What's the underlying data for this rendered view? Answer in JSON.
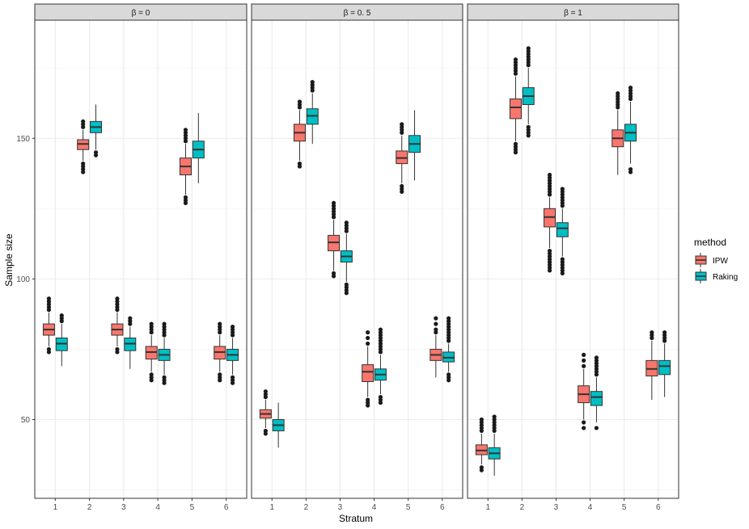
{
  "chart_data": {
    "type": "boxplot",
    "xlabel": "Stratum",
    "ylabel": "Sample size",
    "ylim": [
      22,
      192
    ],
    "y_ticks": [
      50,
      100,
      150
    ],
    "x_categories": [
      "1",
      "2",
      "3",
      "4",
      "5",
      "6"
    ],
    "legend": {
      "title": "method",
      "position": "right",
      "entries": [
        {
          "name": "IPW",
          "color": "#F8766D"
        },
        {
          "name": "Raking",
          "color": "#00BFC4"
        }
      ]
    },
    "panels": [
      {
        "label": "β = 0",
        "series": [
          {
            "name": "IPW",
            "boxes": [
              {
                "stratum": "1",
                "whisker_low": 76,
                "q1": 80,
                "median": 82,
                "q3": 84,
                "whisker_high": 88,
                "outliers": [
                  74,
                  75,
                  89,
                  90,
                  91,
                  92,
                  93
                ]
              },
              {
                "stratum": "2",
                "whisker_low": 142,
                "q1": 146,
                "median": 148,
                "q3": 149.5,
                "whisker_high": 153,
                "outliers": [
                  138,
                  139,
                  140,
                  141,
                  154,
                  155,
                  156
                ]
              },
              {
                "stratum": "3",
                "whisker_low": 76,
                "q1": 80,
                "median": 82,
                "q3": 84,
                "whisker_high": 88,
                "outliers": [
                  74,
                  75,
                  89,
                  90,
                  91,
                  92,
                  93
                ]
              },
              {
                "stratum": "4",
                "whisker_low": 67,
                "q1": 71.5,
                "median": 74,
                "q3": 76,
                "whisker_high": 80,
                "outliers": [
                  64,
                  65,
                  66,
                  81,
                  82,
                  83,
                  84
                ]
              },
              {
                "stratum": "5",
                "whisker_low": 130,
                "q1": 137,
                "median": 140,
                "q3": 143,
                "whisker_high": 148,
                "outliers": [
                  127,
                  128,
                  129,
                  149,
                  150,
                  151,
                  152,
                  153
                ]
              },
              {
                "stratum": "6",
                "whisker_low": 67,
                "q1": 71.5,
                "median": 74,
                "q3": 76,
                "whisker_high": 80,
                "outliers": [
                  64,
                  65,
                  66,
                  81,
                  82,
                  83,
                  84
                ]
              }
            ]
          },
          {
            "name": "Raking",
            "boxes": [
              {
                "stratum": "1",
                "whisker_low": 69,
                "q1": 74.5,
                "median": 77,
                "q3": 79,
                "whisker_high": 84,
                "outliers": [
                  85,
                  86,
                  87
                ]
              },
              {
                "stratum": "2",
                "whisker_low": 146,
                "q1": 152,
                "median": 154,
                "q3": 156,
                "whisker_high": 162,
                "outliers": [
                  144,
                  145
                ]
              },
              {
                "stratum": "3",
                "whisker_low": 68,
                "q1": 74.5,
                "median": 77,
                "q3": 79,
                "whisker_high": 83,
                "outliers": [
                  84,
                  85,
                  86
                ]
              },
              {
                "stratum": "4",
                "whisker_low": 66,
                "q1": 71,
                "median": 73,
                "q3": 75,
                "whisker_high": 79,
                "outliers": [
                  63,
                  64,
                  65,
                  80,
                  81,
                  82,
                  83,
                  84
                ]
              },
              {
                "stratum": "5",
                "whisker_low": 134,
                "q1": 143,
                "median": 146,
                "q3": 149,
                "whisker_high": 159,
                "outliers": []
              },
              {
                "stratum": "6",
                "whisker_low": 66,
                "q1": 71,
                "median": 73,
                "q3": 75,
                "whisker_high": 79,
                "outliers": [
                  63,
                  64,
                  65,
                  80,
                  81,
                  82,
                  83
                ]
              }
            ]
          }
        ]
      },
      {
        "label": "β = 0. 5",
        "series": [
          {
            "name": "IPW",
            "boxes": [
              {
                "stratum": "1",
                "whisker_low": 47,
                "q1": 50.5,
                "median": 52,
                "q3": 53.5,
                "whisker_high": 57,
                "outliers": [
                  45,
                  46,
                  58,
                  59,
                  60
                ]
              },
              {
                "stratum": "2",
                "whisker_low": 142,
                "q1": 149,
                "median": 152,
                "q3": 155,
                "whisker_high": 160,
                "outliers": [
                  140,
                  141,
                  161,
                  162,
                  163
                ]
              },
              {
                "stratum": "3",
                "whisker_low": 103,
                "q1": 110,
                "median": 113,
                "q3": 115.5,
                "whisker_high": 121,
                "outliers": [
                  101,
                  102,
                  122,
                  123,
                  124,
                  125,
                  126,
                  127
                ]
              },
              {
                "stratum": "4",
                "whisker_low": 58,
                "q1": 63.5,
                "median": 67,
                "q3": 69.5,
                "whisker_high": 76,
                "outliers": [
                  55,
                  56,
                  57,
                  77,
                  79,
                  81
                ]
              },
              {
                "stratum": "5",
                "whisker_low": 134,
                "q1": 141,
                "median": 143,
                "q3": 145.5,
                "whisker_high": 151,
                "outliers": [
                  131,
                  132,
                  133,
                  152,
                  153,
                  154,
                  155
                ]
              },
              {
                "stratum": "6",
                "whisker_low": 65,
                "q1": 71,
                "median": 73,
                "q3": 75,
                "whisker_high": 80,
                "outliers": [
                  81,
                  82,
                  84,
                  86
                ]
              }
            ]
          },
          {
            "name": "Raking",
            "boxes": [
              {
                "stratum": "1",
                "whisker_low": 40,
                "q1": 46,
                "median": 48,
                "q3": 50,
                "whisker_high": 56,
                "outliers": []
              },
              {
                "stratum": "2",
                "whisker_low": 148,
                "q1": 155,
                "median": 158,
                "q3": 160.5,
                "whisker_high": 166,
                "outliers": [
                  167,
                  168,
                  169,
                  170
                ]
              },
              {
                "stratum": "3",
                "whisker_low": 99,
                "q1": 106,
                "median": 108,
                "q3": 110,
                "whisker_high": 116,
                "outliers": [
                  95,
                  96,
                  97,
                  98,
                  117,
                  118,
                  119,
                  120
                ]
              },
              {
                "stratum": "4",
                "whisker_low": 59,
                "q1": 64,
                "median": 66,
                "q3": 68,
                "whisker_high": 73,
                "outliers": [
                  56,
                  57,
                  58,
                  74,
                  75,
                  76,
                  77,
                  78,
                  79,
                  80,
                  81,
                  82
                ]
              },
              {
                "stratum": "5",
                "whisker_low": 135,
                "q1": 145,
                "median": 148,
                "q3": 151,
                "whisker_high": 160,
                "outliers": []
              },
              {
                "stratum": "6",
                "whisker_low": 67,
                "q1": 70.5,
                "median": 72,
                "q3": 74,
                "whisker_high": 77,
                "outliers": [
                  64,
                  65,
                  66,
                  78,
                  79,
                  80,
                  81,
                  82,
                  83,
                  84,
                  85,
                  86
                ]
              }
            ]
          }
        ]
      },
      {
        "label": "β = 1",
        "series": [
          {
            "name": "IPW",
            "boxes": [
              {
                "stratum": "1",
                "whisker_low": 34,
                "q1": 37.5,
                "median": 39,
                "q3": 41,
                "whisker_high": 45,
                "outliers": [
                  32,
                  33,
                  46,
                  47,
                  48,
                  49,
                  50
                ]
              },
              {
                "stratum": "2",
                "whisker_low": 149,
                "q1": 157,
                "median": 161,
                "q3": 164,
                "whisker_high": 172,
                "outliers": [
                  145,
                  146,
                  147,
                  148,
                  173,
                  174,
                  175,
                  176,
                  177,
                  178
                ]
              },
              {
                "stratum": "3",
                "whisker_low": 111,
                "q1": 118.5,
                "median": 122,
                "q3": 125,
                "whisker_high": 129,
                "outliers": [
                  103,
                  104,
                  105,
                  106,
                  107,
                  108,
                  109,
                  110,
                  130,
                  131,
                  132,
                  133,
                  134,
                  135,
                  136,
                  137
                ]
              },
              {
                "stratum": "4",
                "whisker_low": 50,
                "q1": 56,
                "median": 59,
                "q3": 62,
                "whisker_high": 68,
                "outliers": [
                  47,
                  49,
                  69,
                  71,
                  73
                ]
              },
              {
                "stratum": "5",
                "whisker_low": 137,
                "q1": 147,
                "median": 150,
                "q3": 153,
                "whisker_high": 160,
                "outliers": [
                  161,
                  162,
                  163,
                  164,
                  165,
                  166
                ]
              },
              {
                "stratum": "6",
                "whisker_low": 57,
                "q1": 65.5,
                "median": 68,
                "q3": 71,
                "whisker_high": 78,
                "outliers": [
                  79,
                  80,
                  81
                ]
              }
            ]
          },
          {
            "name": "Raking",
            "boxes": [
              {
                "stratum": "1",
                "whisker_low": 30,
                "q1": 36,
                "median": 38,
                "q3": 40,
                "whisker_high": 45,
                "outliers": [
                  46,
                  47,
                  48,
                  49,
                  50,
                  51
                ]
              },
              {
                "stratum": "2",
                "whisker_low": 155,
                "q1": 162,
                "median": 165,
                "q3": 168,
                "whisker_high": 175,
                "outliers": [
                  151,
                  152,
                  153,
                  154,
                  176,
                  177,
                  178,
                  179,
                  180,
                  181,
                  182
                ]
              },
              {
                "stratum": "3",
                "whisker_low": 108,
                "q1": 115,
                "median": 118,
                "q3": 120,
                "whisker_high": 125,
                "outliers": [
                  102,
                  103,
                  104,
                  105,
                  106,
                  107,
                  126,
                  127,
                  128,
                  129,
                  130,
                  131,
                  132
                ]
              },
              {
                "stratum": "4",
                "whisker_low": 49,
                "q1": 55,
                "median": 58,
                "q3": 60,
                "whisker_high": 65,
                "outliers": [
                  47,
                  66,
                  67,
                  68,
                  69,
                  70,
                  71,
                  72
                ]
              },
              {
                "stratum": "5",
                "whisker_low": 141,
                "q1": 149,
                "median": 152,
                "q3": 155,
                "whisker_high": 163,
                "outliers": [
                  138,
                  139,
                  164,
                  165,
                  166,
                  167,
                  168
                ]
              },
              {
                "stratum": "6",
                "whisker_low": 58,
                "q1": 66,
                "median": 69,
                "q3": 71,
                "whisker_high": 77,
                "outliers": [
                  78,
                  79,
                  80,
                  81
                ]
              }
            ]
          }
        ]
      }
    ]
  }
}
